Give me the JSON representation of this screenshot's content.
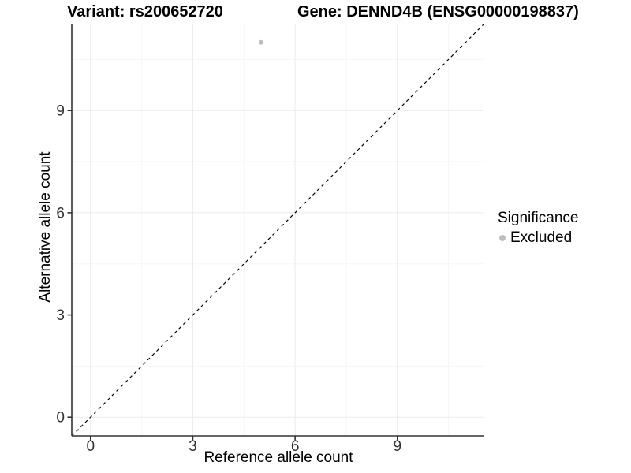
{
  "chart_data": {
    "type": "scatter",
    "title_left": "Variant: rs200652720",
    "title_right": "Gene: DENND4B (ENSG00000198837)",
    "xlabel": "Reference allele count",
    "ylabel": "Alternative allele count",
    "xlim": [
      -0.55,
      11.55
    ],
    "ylim": [
      -0.55,
      11.55
    ],
    "x_major_ticks": [
      0,
      3,
      6,
      9
    ],
    "y_major_ticks": [
      0,
      3,
      6,
      9
    ],
    "x_minor_ticks": [
      1.5,
      4.5,
      7.5,
      10.5
    ],
    "y_minor_ticks": [
      1.5,
      4.5,
      7.5,
      10.5
    ],
    "grid": true,
    "series": [
      {
        "name": "Excluded",
        "color": "#bebebe",
        "points": [
          {
            "x": 5,
            "y": 11
          }
        ]
      }
    ],
    "reference_line": {
      "type": "identity",
      "slope": 1,
      "intercept": 0,
      "style": "dashed",
      "color": "#000000"
    },
    "legend": {
      "title": "Significance",
      "position": "right",
      "items": [
        {
          "label": "Excluded",
          "color": "#bebebe"
        }
      ]
    },
    "colors": {
      "axis_line": "#333333",
      "tick_label": "#303030",
      "grid_major": "#ebebeb",
      "grid_minor": "#f6f6f6",
      "panel_background": "#ffffff"
    }
  }
}
